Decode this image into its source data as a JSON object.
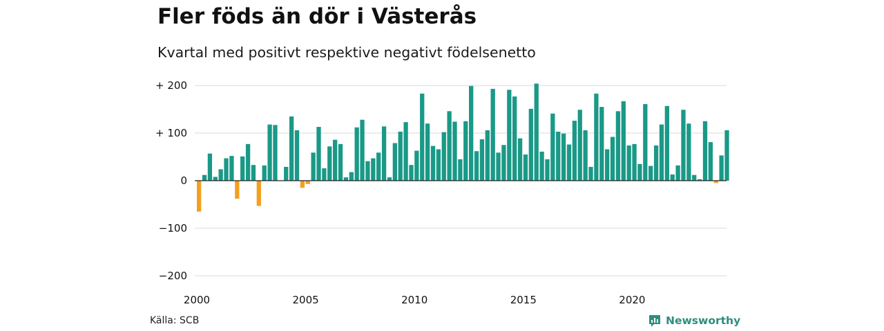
{
  "title": "Fler föds än dör i Västerås",
  "subtitle": "Kvartal med positivt respektive negativt födelsenetto",
  "source": "Källa: SCB",
  "brand": {
    "name": "Newsworthy",
    "icon": "chart-bubble-icon"
  },
  "colors": {
    "positive": "#1a9987",
    "negative": "#f3a01e",
    "grid": "#d9d9d9",
    "zero": "#222222"
  },
  "chart_data": {
    "type": "bar",
    "title": "Fler föds än dör i Västerås",
    "subtitle": "Kvartal med positivt respektive negativt födelsenetto",
    "ylim": [
      -200,
      200
    ],
    "yticks": [
      {
        "value": 200,
        "label": "+ 200"
      },
      {
        "value": 100,
        "label": "+ 100"
      },
      {
        "value": 0,
        "label": "0"
      },
      {
        "value": -100,
        "label": "−100"
      },
      {
        "value": -200,
        "label": "−200"
      }
    ],
    "xticks": [
      "2000",
      "2005",
      "2010",
      "2015",
      "2020"
    ],
    "start_year": 2000,
    "grid": true,
    "series": [
      {
        "values": [
          -65,
          12,
          57,
          8,
          24,
          47,
          52,
          -38,
          51,
          77,
          33,
          -53,
          32,
          118,
          117,
          0,
          29,
          135,
          106,
          -15,
          -7,
          59,
          113,
          26,
          72,
          86,
          77,
          7,
          18,
          112,
          128,
          41,
          47,
          59,
          114,
          7,
          79,
          103,
          123,
          33,
          63,
          183,
          120,
          73,
          66,
          102,
          146,
          124,
          45,
          125,
          199,
          62,
          87,
          106,
          193,
          59,
          75,
          191,
          177,
          89,
          55,
          151,
          204,
          61,
          45,
          141,
          103,
          99,
          76,
          126,
          149,
          106,
          29,
          183,
          155,
          66,
          92,
          146,
          167,
          74,
          77,
          35,
          161,
          31,
          74,
          118,
          157,
          13,
          32,
          149,
          120,
          12,
          3,
          125,
          81,
          -5,
          53,
          106
        ]
      }
    ]
  }
}
